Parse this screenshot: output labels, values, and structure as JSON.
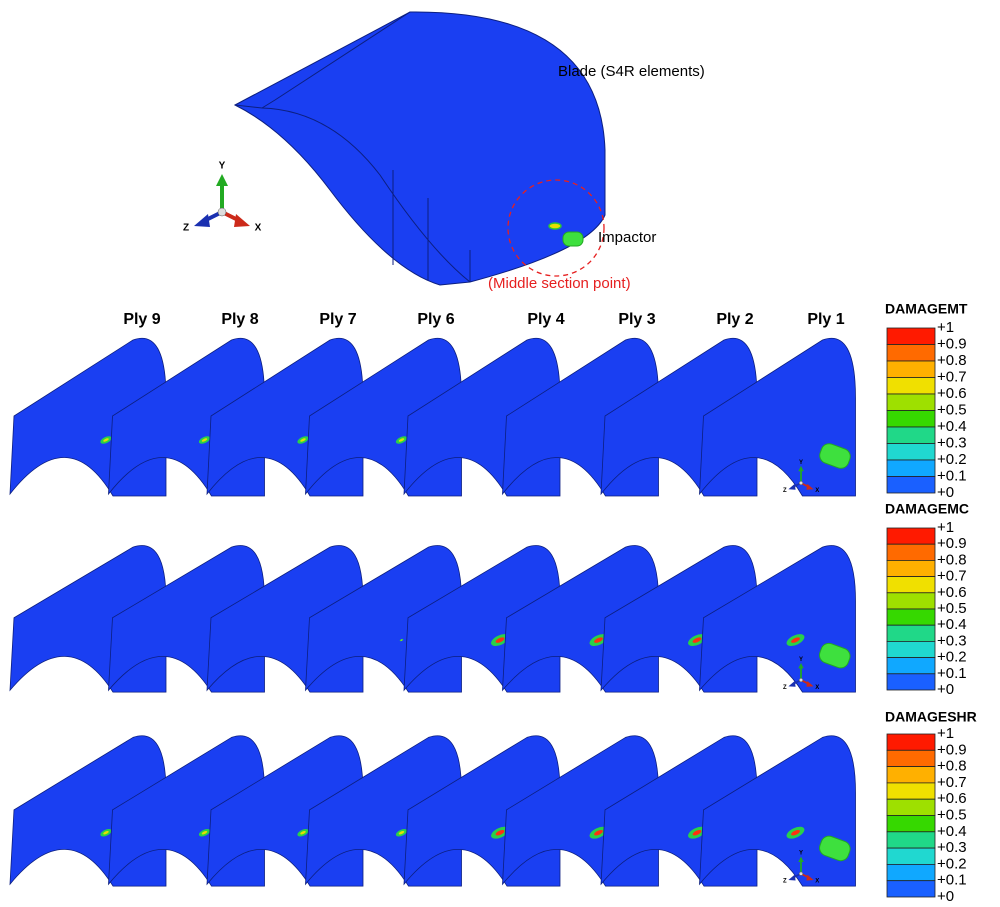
{
  "header": {
    "blade": "Blade (S4R elements)",
    "impactor": "Impactor",
    "section": "(Middle section point)"
  },
  "axes": {
    "y": "Y",
    "z": "Z",
    "x": "X"
  },
  "plies": [
    "Ply 9",
    "Ply 8",
    "Ply 7",
    "Ply 6",
    "Ply 4",
    "Ply 3",
    "Ply 2",
    "Ply 1"
  ],
  "legends": [
    {
      "title": "DAMAGEMT",
      "labels": [
        "+1",
        "+0.9",
        "+0.8",
        "+0.7",
        "+0.6",
        "+0.5",
        "+0.4",
        "+0.3",
        "+0.2",
        "+0.1",
        "+0"
      ]
    },
    {
      "title": "DAMAGEMC",
      "labels": [
        "+1",
        "+0.9",
        "+0.8",
        "+0.7",
        "+0.6",
        "+0.5",
        "+0.4",
        "+0.3",
        "+0.2",
        "+0.1",
        "+0"
      ]
    },
    {
      "title": "DAMAGESHR",
      "labels": [
        "+1",
        "+0.9",
        "+0.8",
        "+0.7",
        "+0.6",
        "+0.5",
        "+0.4",
        "+0.3",
        "+0.2",
        "+0.1",
        "+0"
      ]
    }
  ]
}
